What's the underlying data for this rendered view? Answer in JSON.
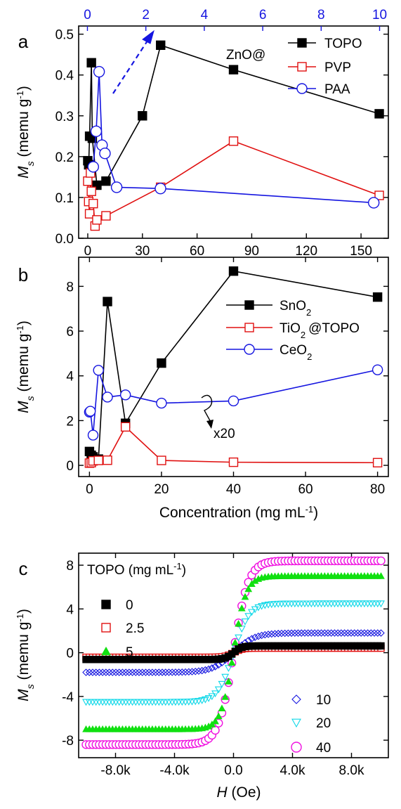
{
  "chart_data": [
    {
      "panel_letter": "a",
      "type": "line",
      "ylabel": {
        "italic": "M",
        "sub": "s",
        "rest": " (memu g",
        "sup": "-1",
        "close": ")"
      },
      "xlim": [
        -5,
        165
      ],
      "ylim": [
        0,
        0.52
      ],
      "xticks": [
        0,
        30,
        60,
        90,
        120,
        150
      ],
      "yticks": [
        0.0,
        0.1,
        0.2,
        0.3,
        0.4,
        0.5
      ],
      "xtick_labels": [
        "0",
        "30",
        "60",
        "90",
        "120",
        "150"
      ],
      "ytick_labels": [
        "0.0",
        "0.1",
        "0.2",
        "0.3",
        "0.4",
        "0.5"
      ],
      "top_axis": {
        "color": "#1515e0",
        "xlim": [
          -0.3,
          10.3
        ],
        "ticks": [
          0,
          2,
          4,
          6,
          8,
          10
        ],
        "tick_labels": [
          "0",
          "2",
          "4",
          "6",
          "8",
          "10"
        ]
      },
      "legend_prefix": "ZnO@",
      "series": [
        {
          "name": "TOPO",
          "color": "#000000",
          "marker": "square-filled",
          "axis": "bottom",
          "x": [
            0,
            0.5,
            1,
            2,
            2.5,
            5,
            10,
            30,
            40,
            80,
            160
          ],
          "y": [
            0.19,
            0.18,
            0.25,
            0.43,
            0.245,
            0.13,
            0.14,
            0.3,
            0.473,
            0.413,
            0.305
          ]
        },
        {
          "name": "PVP",
          "color": "#e01010",
          "marker": "square-open",
          "axis": "bottom",
          "x": [
            0,
            0.5,
            1,
            1.5,
            2,
            3,
            4,
            5,
            10,
            40,
            80,
            160
          ],
          "y": [
            0.14,
            0.09,
            0.06,
            0.16,
            0.115,
            0.085,
            0.03,
            0.045,
            0.055,
            0.125,
            0.238,
            0.105
          ]
        },
        {
          "name": "PAA",
          "color": "#1515e0",
          "marker": "circle-open",
          "axis": "top",
          "x": [
            0.2,
            0.3,
            0.4,
            0.5,
            0.6,
            1.0,
            2.5,
            9.8
          ],
          "y": [
            0.175,
            0.262,
            0.408,
            0.228,
            0.208,
            0.125,
            0.122,
            0.087
          ]
        }
      ],
      "arrow_color": "#1515e0"
    },
    {
      "panel_letter": "b",
      "type": "line",
      "ylabel": {
        "italic": "M",
        "sub": "s",
        "rest": " (memu g",
        "sup": "-1",
        "close": ")"
      },
      "xlabel": {
        "text": "Concentration (mg mL",
        "sup": "-1",
        "close": ")"
      },
      "xlim": [
        -3,
        83
      ],
      "ylim": [
        -0.5,
        9.3
      ],
      "xticks": [
        0,
        20,
        40,
        60,
        80
      ],
      "yticks": [
        0,
        2,
        4,
        6,
        8
      ],
      "xtick_labels": [
        "0",
        "20",
        "40",
        "60",
        "80"
      ],
      "ytick_labels": [
        "0",
        "2",
        "4",
        "6",
        "8"
      ],
      "series": [
        {
          "name": "SnO",
          "name_sub": "2",
          "color": "#000000",
          "marker": "square-filled",
          "x": [
            0,
            0.5,
            1,
            2.5,
            5,
            10,
            20,
            40,
            80
          ],
          "y": [
            0.62,
            0.45,
            0.38,
            0.28,
            7.32,
            1.88,
            4.57,
            8.68,
            7.52
          ]
        },
        {
          "name": "TiO",
          "name_sub": "2",
          "name_suffix": "@TOPO",
          "color": "#e01010",
          "marker": "square-open",
          "x": [
            0,
            0.5,
            1,
            2.5,
            5,
            10,
            20,
            40,
            80
          ],
          "y": [
            0.1,
            0.12,
            0.2,
            0.22,
            0.23,
            1.72,
            0.22,
            0.14,
            0.12
          ]
        },
        {
          "name": "CeO",
          "name_sub": "2",
          "color": "#1515e0",
          "marker": "circle-open",
          "x": [
            0,
            0.25,
            1,
            2.5,
            5,
            10,
            20,
            40,
            80
          ],
          "y": [
            2.38,
            2.42,
            1.35,
            4.25,
            3.05,
            3.15,
            2.78,
            2.88,
            4.27
          ]
        }
      ],
      "annotation": "x20"
    },
    {
      "panel_letter": "c",
      "type": "scatter",
      "ylabel": {
        "italic": "M",
        "sub": "s",
        "rest": " (memu g",
        "sup": "-1",
        "close": ")"
      },
      "xlabel": {
        "italic": "H",
        "rest": " (Oe)"
      },
      "xlim": [
        -10500,
        10500
      ],
      "ylim": [
        -9.6,
        9.1
      ],
      "xticks": [
        -8000,
        -4000,
        0,
        4000,
        8000
      ],
      "yticks": [
        -8,
        -4,
        0,
        4,
        8
      ],
      "xtick_labels": [
        "-8.0k",
        "-4.0k",
        "0.0",
        "4.0k",
        "8.0k"
      ],
      "ytick_labels": [
        "-8",
        "-4",
        "0",
        "4",
        "8"
      ],
      "legend_title": {
        "text": "TOPO (mg mL",
        "sup": "-1",
        "close": ")"
      },
      "series": [
        {
          "name": "0",
          "color": "#000000",
          "marker": "square-filled",
          "ms": 0.62,
          "h0": 550
        },
        {
          "name": "2.5",
          "color": "#e01010",
          "marker": "square-open",
          "ms": 0.42,
          "h0": 550
        },
        {
          "name": "5",
          "color": "#10e010",
          "marker": "triangle-filled",
          "ms": 7.0,
          "h0": 850
        },
        {
          "name": "10",
          "color": "#1515e0",
          "marker": "diamond-open",
          "ms": 1.8,
          "h0": 1400
        },
        {
          "name": "20",
          "color": "#10d8e8",
          "marker": "triangle-down-open",
          "ms": 4.5,
          "h0": 1050
        },
        {
          "name": "40",
          "color": "#f010e0",
          "marker": "circle-open",
          "ms": 8.4,
          "h0": 1000
        }
      ],
      "field_range": [
        -10000,
        10000
      ],
      "points_per_series": 90
    }
  ]
}
